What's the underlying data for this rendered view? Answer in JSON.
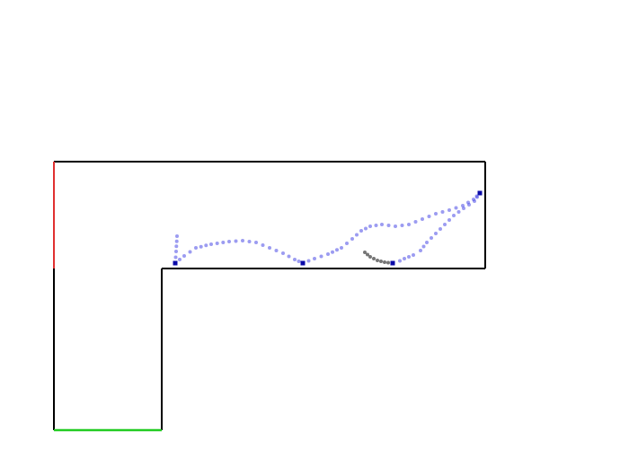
{
  "scene": {
    "background_color": "#ffffff",
    "wall_color": "#000000",
    "start_edge_color": "#e03030",
    "goal_edge_color": "#22cc22",
    "trajectory_color": "#4a4ae6",
    "trajectory_opacity": 0.55,
    "waypoint_color": "#0a0aa8",
    "ghost_color": "#3c3c3c"
  }
}
